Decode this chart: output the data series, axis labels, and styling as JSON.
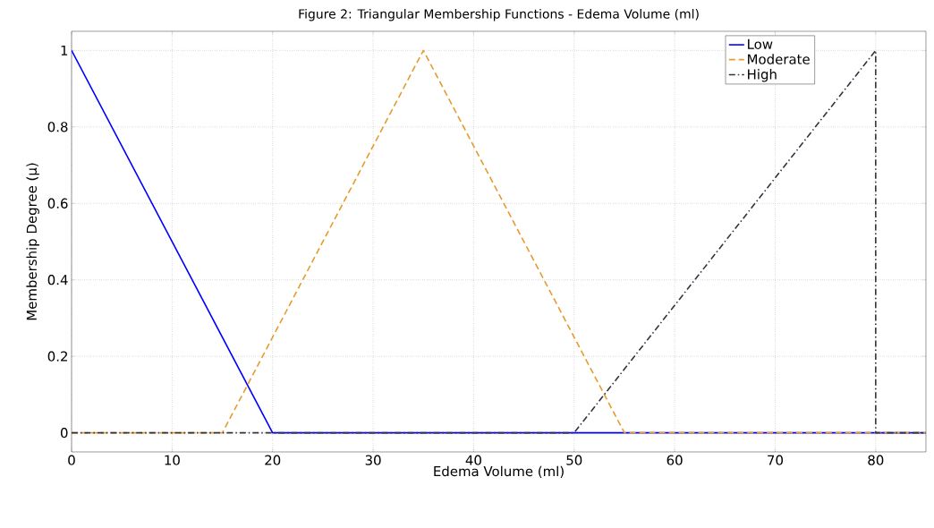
{
  "chart_data": {
    "type": "line",
    "title": "Figure 2: Triangular Membership Functions - Edema Volume (ml)",
    "xlabel": "Edema Volume (ml)",
    "ylabel": "Membership Degree (μ)",
    "series": [
      {
        "name": "Low",
        "color": "#0000ff",
        "line_style": "solid",
        "x": [
          0,
          20,
          85
        ],
        "values": [
          1,
          0,
          0
        ]
      },
      {
        "name": "Moderate",
        "color": "#e69b2d",
        "line_style": "dashed",
        "x": [
          0,
          15,
          35,
          55,
          85
        ],
        "values": [
          0,
          0,
          1,
          0,
          0
        ]
      },
      {
        "name": "High",
        "color": "#333340",
        "line_style": "dashdot",
        "x": [
          0,
          50,
          80,
          80,
          85
        ],
        "values": [
          0,
          0,
          1,
          0,
          0
        ]
      }
    ],
    "xlim": [
      0,
      85
    ],
    "ylim": [
      -0.05,
      1.05
    ],
    "xticks": [
      0,
      10,
      20,
      30,
      40,
      50,
      60,
      70,
      80
    ],
    "yticks": [
      0,
      0.2,
      0.4,
      0.6,
      0.8,
      1
    ],
    "grid": true,
    "legend": "top right",
    "marker": "none"
  }
}
